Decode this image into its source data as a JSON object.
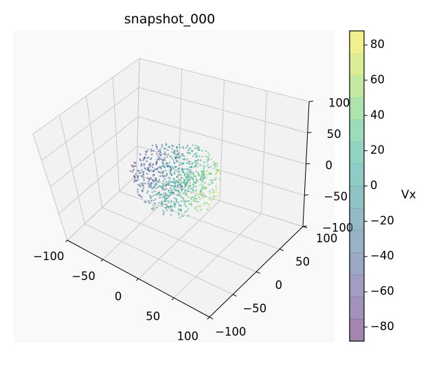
{
  "chart_data": {
    "type": "scatter",
    "projection": "3d",
    "title": "snapshot_000",
    "xlabel": "",
    "ylabel": "",
    "zlabel": "",
    "xlim": [
      -100,
      100
    ],
    "ylim": [
      -100,
      100
    ],
    "zlim": [
      -100,
      100
    ],
    "x_ticks": [
      "−100",
      "−50",
      "0",
      "50",
      "100"
    ],
    "y_ticks": [
      "−100",
      "−50",
      "0",
      "50",
      "100"
    ],
    "z_ticks": [
      "−100",
      "−50",
      "0",
      "50",
      "100"
    ],
    "grid": true,
    "pane_color": "#f2f2f2",
    "colormap": "viridis",
    "point_alpha": 0.5,
    "point_count_estimate": 800,
    "cluster": {
      "shape": "sphere",
      "center": [
        0,
        0,
        0
      ],
      "radius": 50
    },
    "color_by": "Vx",
    "colorbar": {
      "label": "Vx",
      "range": [
        -88,
        88
      ],
      "ticks": [
        "−80",
        "−60",
        "−40",
        "−20",
        "0",
        "20",
        "40",
        "60",
        "80"
      ],
      "tick_values": [
        -80,
        -60,
        -40,
        -20,
        0,
        20,
        40,
        60,
        80
      ],
      "levels": 14,
      "colors": [
        "#440154",
        "#481a6c",
        "#472f7d",
        "#414487",
        "#39568c",
        "#31688e",
        "#2a788e",
        "#23888e",
        "#1f988b",
        "#22a884",
        "#35b779",
        "#54c568",
        "#7ad151",
        "#a5db36",
        "#d2e21b",
        "#fde725"
      ]
    }
  }
}
